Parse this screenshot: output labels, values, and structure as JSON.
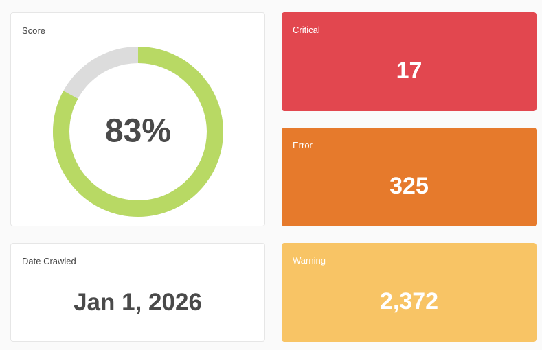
{
  "score": {
    "title": "Score",
    "type": "donut",
    "value": 83,
    "value_label": "83%",
    "range": [
      0,
      100
    ],
    "color": "#b8d964",
    "track_color": "#dcdcdc"
  },
  "date_crawled": {
    "title": "Date Crawled",
    "value": "Jan 1, 2026"
  },
  "critical": {
    "title": "Critical",
    "value": 17
  },
  "error": {
    "title": "Error",
    "value": 325
  },
  "warning": {
    "title": "Warning",
    "value": 2372,
    "value_label": "2,372"
  }
}
